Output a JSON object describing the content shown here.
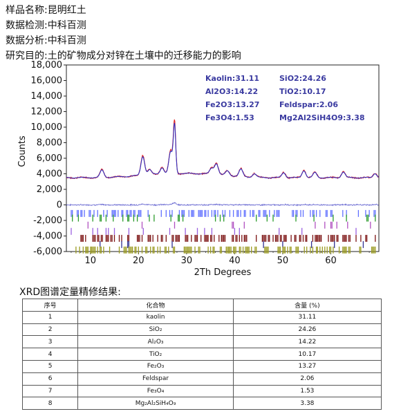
{
  "header": {
    "sample_label": "样品名称:",
    "sample_value": "昆明红土",
    "detection_label": "数据检测:",
    "detection_value": "中科百测",
    "analysis_label": "数据分析:",
    "analysis_value": "中科百测",
    "purpose_label": "研究目的:",
    "purpose_value": "土的矿物成分对锌在土壤中的迁移能力的影响"
  },
  "chart_data": {
    "type": "line",
    "xlabel": "2Th Degrees",
    "ylabel": "Counts",
    "xlim": [
      5,
      70
    ],
    "ylim": [
      -6000,
      18000
    ],
    "x_ticks": [
      10,
      20,
      30,
      40,
      50,
      60
    ],
    "y_ticks": [
      -6000,
      -4000,
      -2000,
      0,
      2000,
      4000,
      6000,
      8000,
      10000,
      12000,
      14000,
      16000,
      18000
    ],
    "y_tick_labels": [
      "-6,000",
      "-4,000",
      "-2,000",
      "0",
      "2,000",
      "4,000",
      "6,000",
      "8,000",
      "10,000",
      "12,000",
      "14,000",
      "16,000",
      "18,000"
    ],
    "series": [
      {
        "kind": "observed",
        "color": "#e02020",
        "peaks": [
          [
            12.4,
            1000
          ],
          [
            20.9,
            2600
          ],
          [
            22.3,
            700
          ],
          [
            24.9,
            900
          ],
          [
            26.7,
            3000
          ],
          [
            27.5,
            6600
          ],
          [
            35.2,
            800
          ],
          [
            36.2,
            1500
          ],
          [
            38.5,
            600
          ],
          [
            41.3,
            1000
          ],
          [
            44.1,
            500
          ],
          [
            50.2,
            700
          ],
          [
            54.4,
            1000
          ],
          [
            56.7,
            700
          ],
          [
            62.6,
            800
          ],
          [
            69.2,
            600
          ]
        ]
      },
      {
        "kind": "calculated",
        "color": "#3030c0"
      },
      {
        "kind": "difference",
        "color": "#3030c0",
        "baseline": 0
      },
      {
        "kind": "reflection-marks",
        "rows": [
          {
            "y": -1100,
            "color": "#6070ff"
          },
          {
            "y": -1700,
            "color": "#2a9a2a"
          },
          {
            "y": -2600,
            "color": "#b050c0"
          },
          {
            "y": -3400,
            "color": "#9a60e0"
          },
          {
            "y": -4300,
            "color": "#7a1010"
          },
          {
            "y": -5100,
            "color": "#303090"
          },
          {
            "y": -5800,
            "color": "#9a9a20"
          }
        ]
      }
    ],
    "annotations": [
      {
        "text": "Kaolin:31.11",
        "col": 0,
        "row": 0
      },
      {
        "text": "SiO2:24.26",
        "col": 1,
        "row": 0
      },
      {
        "text": "Al2O3:14.22",
        "col": 0,
        "row": 1
      },
      {
        "text": "TiO2:10.17",
        "col": 1,
        "row": 1
      },
      {
        "text": "Fe2O3:13.27",
        "col": 0,
        "row": 2
      },
      {
        "text": "Feldspar:2.06",
        "col": 1,
        "row": 2
      },
      {
        "text": "Fe3O4:1.53",
        "col": 0,
        "row": 3
      },
      {
        "text": "Mg2Al2SiH4O9:3.38",
        "col": 1,
        "row": 3
      }
    ],
    "annotation_color": "#3a3aa0"
  },
  "table": {
    "title": "XRD图谱定量精修结果:",
    "headers": [
      "序号",
      "化合物",
      "含量 (%)"
    ],
    "rows": [
      {
        "no": "1",
        "compound": "kaolin",
        "content": "31.11"
      },
      {
        "no": "2",
        "compound": "SiO₂",
        "content": "24.26"
      },
      {
        "no": "3",
        "compound": "Al₂O₃",
        "content": "14.22"
      },
      {
        "no": "4",
        "compound": "TiO₂",
        "content": "10.17"
      },
      {
        "no": "5",
        "compound": "Fe₂O₃",
        "content": "13.27"
      },
      {
        "no": "6",
        "compound": "Feldspar",
        "content": "2.06"
      },
      {
        "no": "7",
        "compound": "Fe₃O₄",
        "content": "1.53"
      },
      {
        "no": "8",
        "compound": "Mg₂Al₂SiH₄O₉",
        "content": "3.38"
      }
    ]
  }
}
